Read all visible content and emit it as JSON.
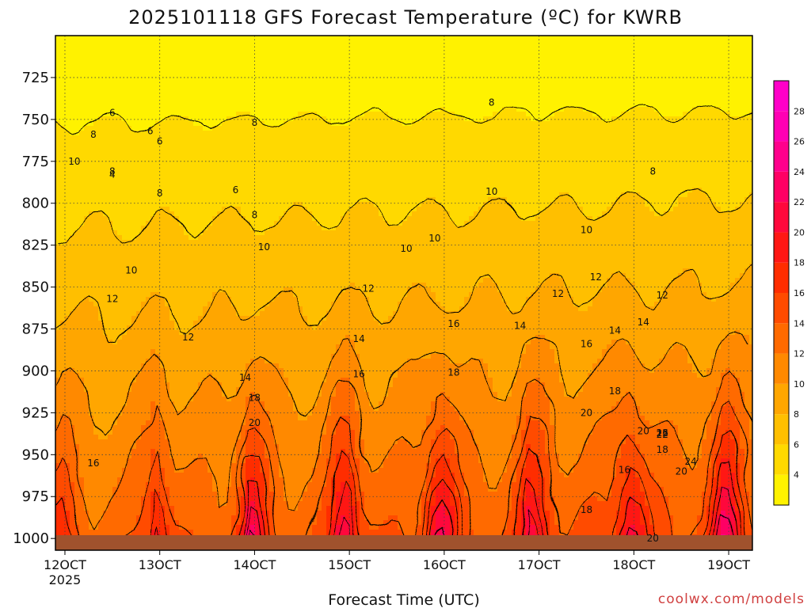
{
  "chart_data": {
    "type": "heatmap",
    "title": "2025101118 GFS Forecast Temperature (ºC) for KWRB",
    "xlabel": "Forecast Time (UTC)",
    "ylabel": "",
    "x_ticks": [
      "12OCT",
      "13OCT",
      "14OCT",
      "15OCT",
      "16OCT",
      "17OCT",
      "18OCT",
      "19OCT"
    ],
    "x_tick_year": "2025",
    "x_days": [
      12,
      13,
      14,
      15,
      16,
      17,
      18,
      19
    ],
    "xlim": [
      11.9,
      19.25
    ],
    "y_ticks": [
      "725",
      "750",
      "775",
      "800",
      "825",
      "850",
      "875",
      "900",
      "925",
      "950",
      "975",
      "1000"
    ],
    "y_values": [
      725,
      750,
      775,
      800,
      825,
      850,
      875,
      900,
      925,
      950,
      975,
      1000
    ],
    "ylim": [
      700,
      1007
    ],
    "colorbar_ticks": [
      "4",
      "6",
      "8",
      "10",
      "12",
      "14",
      "16",
      "18",
      "20",
      "22",
      "24",
      "26",
      "28"
    ],
    "contour_labels": [
      "4",
      "6",
      "6",
      "6",
      "6",
      "8",
      "8",
      "8",
      "8",
      "8",
      "8",
      "8",
      "10",
      "10",
      "10",
      "10",
      "10",
      "10",
      "10",
      "12",
      "12",
      "12",
      "12",
      "12",
      "12",
      "14",
      "14",
      "14",
      "14",
      "14",
      "16",
      "16",
      "16",
      "16",
      "16",
      "16",
      "18",
      "18",
      "18",
      "18",
      "18",
      "20",
      "20",
      "20",
      "20",
      "20",
      "22",
      "22",
      "24"
    ],
    "surface_pressure_hpa": 1000,
    "colors": {
      "ground": "#a0522d",
      "t4": "#ffff00",
      "t12": "#ff9900",
      "t20": "#ff1a00",
      "t28": "#ff00bf"
    }
  },
  "credit": "coolwx.com/models"
}
